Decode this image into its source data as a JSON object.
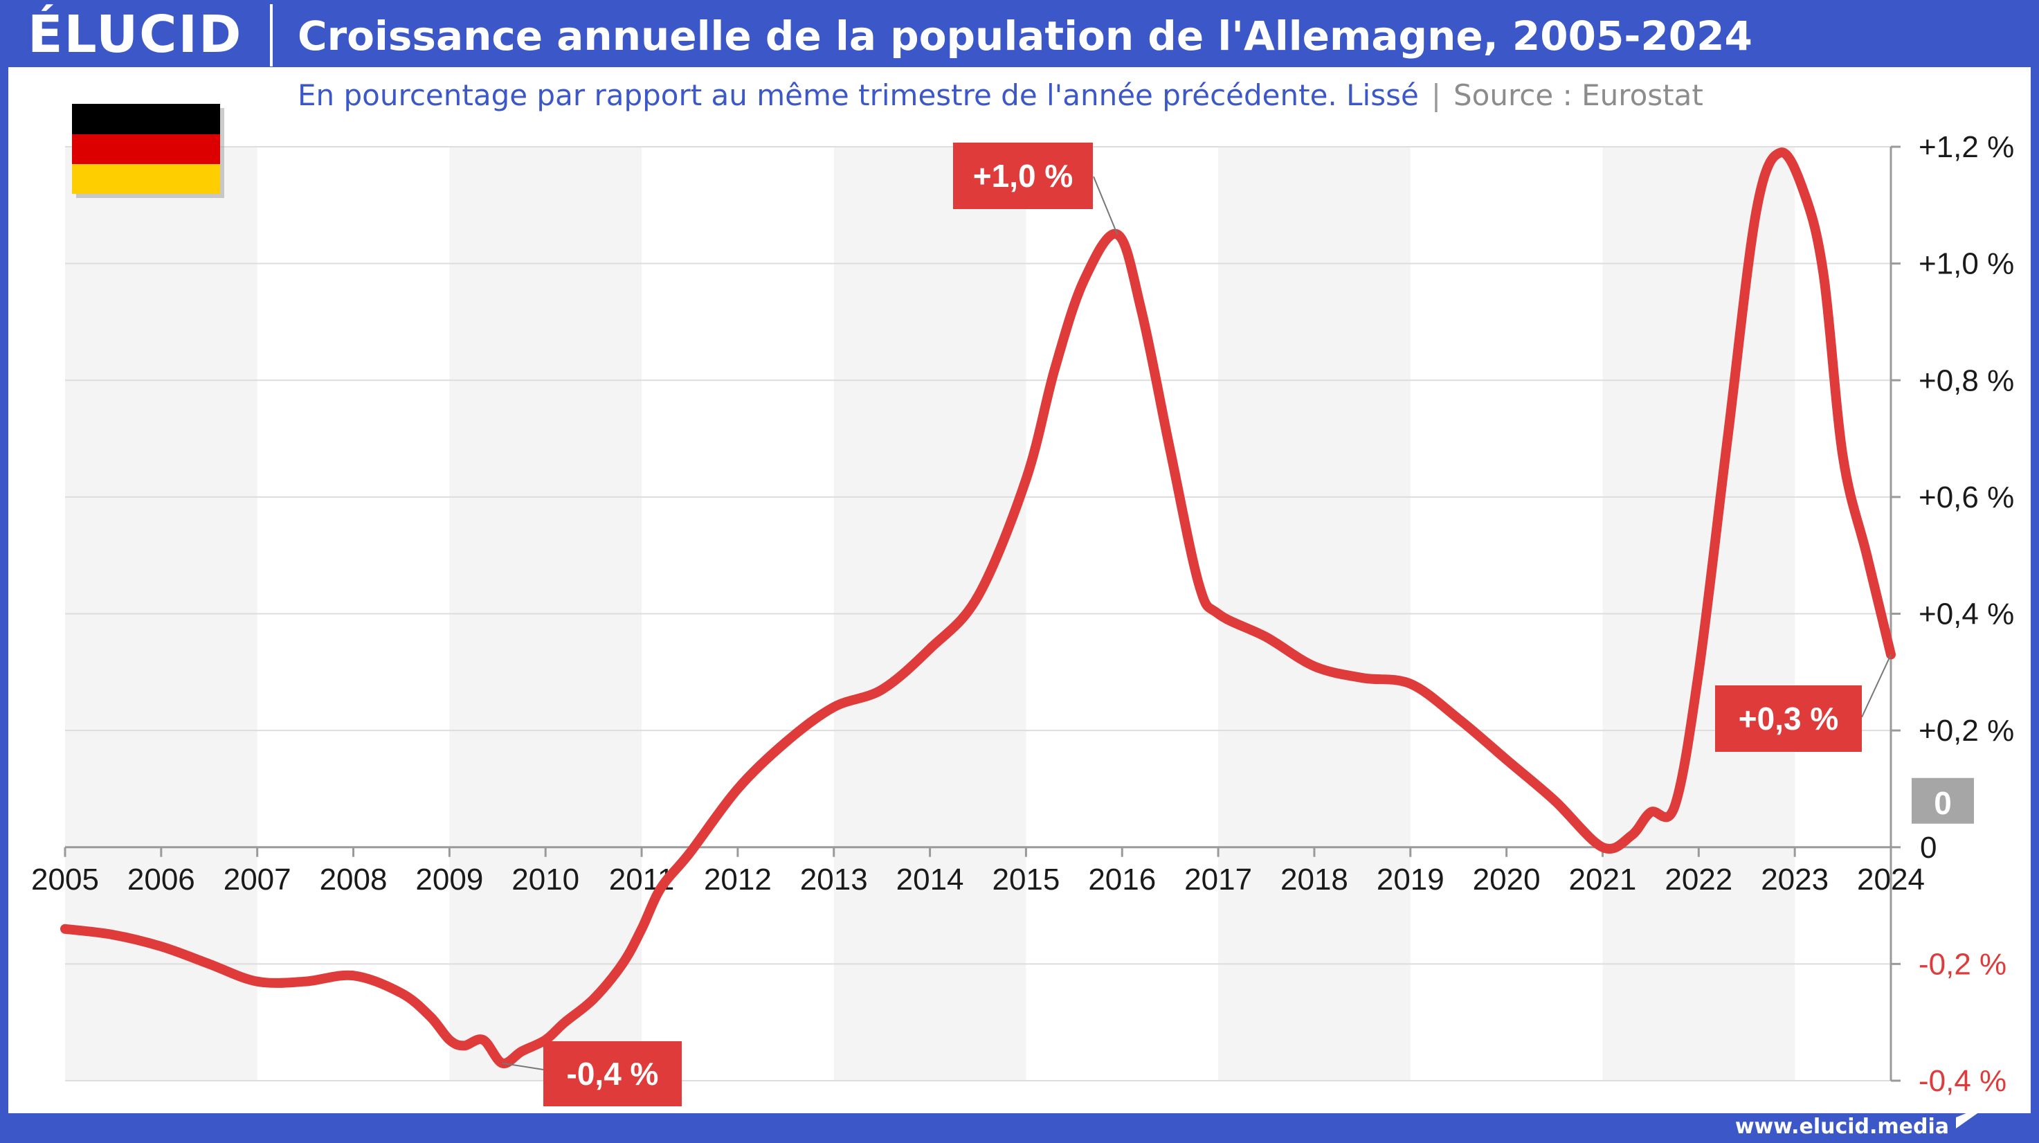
{
  "header": {
    "logo": "ÉLUCID",
    "title": "Croissance annuelle de la population de l'Allemagne, 2005-2024"
  },
  "subtitle": {
    "main": "En pourcentage par rapport au même trimestre de l'année précédente. Lissé",
    "separator": "|",
    "source": "Source : Eurostat"
  },
  "footer": {
    "url": "www.elucid.media"
  },
  "colors": {
    "frame": "#3b57c8",
    "line": "#e03b3b",
    "label_bg": "#e03b3b",
    "zero_badge": "#a6a6a6",
    "negative_tick": "#e03b3b",
    "band": "#f4f4f4"
  },
  "flag_icon": "germany-flag-icon",
  "chart_data": {
    "type": "line",
    "title": "Croissance annuelle de la population de l'Allemagne, 2005-2024",
    "xlabel": "",
    "ylabel": "",
    "xlim": [
      2005,
      2024
    ],
    "ylim": [
      -0.4,
      1.2
    ],
    "x_ticks": [
      "2005",
      "2006",
      "2007",
      "2008",
      "2009",
      "2010",
      "2011",
      "2012",
      "2013",
      "2014",
      "2015",
      "2016",
      "2017",
      "2018",
      "2019",
      "2020",
      "2021",
      "2022",
      "2023",
      "2024"
    ],
    "y_ticks": [
      {
        "value": 1.2,
        "label": "+1,2 %"
      },
      {
        "value": 1.0,
        "label": "+1,0 %"
      },
      {
        "value": 0.8,
        "label": "+0,8 %"
      },
      {
        "value": 0.6,
        "label": "+0,6 %"
      },
      {
        "value": 0.4,
        "label": "+0,4 %"
      },
      {
        "value": 0.2,
        "label": "+0,2 %"
      },
      {
        "value": 0.0,
        "label": "0"
      },
      {
        "value": -0.2,
        "label": "-0,2 %"
      },
      {
        "value": -0.4,
        "label": "-0,4 %"
      }
    ],
    "zero_badge": "0",
    "grid": true,
    "series": [
      {
        "points": [
          [
            2005.0,
            -0.14
          ],
          [
            2005.5,
            -0.15
          ],
          [
            2006.0,
            -0.17
          ],
          [
            2006.5,
            -0.2
          ],
          [
            2007.0,
            -0.23
          ],
          [
            2007.5,
            -0.23
          ],
          [
            2008.0,
            -0.22
          ],
          [
            2008.5,
            -0.25
          ],
          [
            2008.8,
            -0.29
          ],
          [
            2009.0,
            -0.33
          ],
          [
            2009.15,
            -0.34
          ],
          [
            2009.35,
            -0.33
          ],
          [
            2009.55,
            -0.37
          ],
          [
            2009.75,
            -0.35
          ],
          [
            2010.0,
            -0.33
          ],
          [
            2010.2,
            -0.3
          ],
          [
            2010.5,
            -0.26
          ],
          [
            2010.8,
            -0.2
          ],
          [
            2011.0,
            -0.14
          ],
          [
            2011.2,
            -0.07
          ],
          [
            2011.5,
            -0.01
          ],
          [
            2012.0,
            0.1
          ],
          [
            2012.5,
            0.18
          ],
          [
            2013.0,
            0.24
          ],
          [
            2013.5,
            0.27
          ],
          [
            2014.0,
            0.34
          ],
          [
            2014.5,
            0.43
          ],
          [
            2015.0,
            0.63
          ],
          [
            2015.3,
            0.82
          ],
          [
            2015.6,
            0.97
          ],
          [
            2015.95,
            1.05
          ],
          [
            2016.2,
            0.92
          ],
          [
            2016.5,
            0.68
          ],
          [
            2016.8,
            0.45
          ],
          [
            2017.0,
            0.4
          ],
          [
            2017.5,
            0.36
          ],
          [
            2018.0,
            0.31
          ],
          [
            2018.5,
            0.29
          ],
          [
            2019.0,
            0.28
          ],
          [
            2019.5,
            0.22
          ],
          [
            2020.0,
            0.15
          ],
          [
            2020.5,
            0.08
          ],
          [
            2021.0,
            0.0
          ],
          [
            2021.3,
            0.02
          ],
          [
            2021.5,
            0.06
          ],
          [
            2021.75,
            0.07
          ],
          [
            2022.0,
            0.3
          ],
          [
            2022.3,
            0.7
          ],
          [
            2022.6,
            1.09
          ],
          [
            2022.85,
            1.19
          ],
          [
            2023.1,
            1.12
          ],
          [
            2023.3,
            0.98
          ],
          [
            2023.5,
            0.67
          ],
          [
            2023.75,
            0.5
          ],
          [
            2024.0,
            0.33
          ]
        ]
      }
    ],
    "annotations": [
      {
        "text": "+1,0 %",
        "x": 2015.95,
        "y": 1.05
      },
      {
        "text": "-0,4 %",
        "x": 2009.55,
        "y": -0.37
      },
      {
        "text": "+0,3 %",
        "x": 2024.0,
        "y": 0.33
      }
    ]
  }
}
